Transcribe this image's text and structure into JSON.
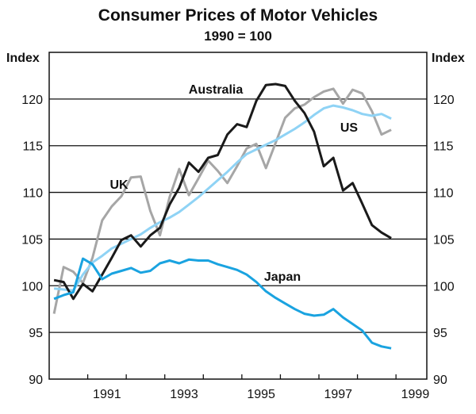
{
  "chart_data": {
    "type": "line",
    "title": "Consumer Prices of Motor Vehicles",
    "subtitle": "1990 = 100",
    "ylabel_left": "Index",
    "ylabel_right": "Index",
    "ylim": [
      90,
      125
    ],
    "yticks": [
      90,
      95,
      100,
      105,
      110,
      115,
      120
    ],
    "xlim": [
      1990,
      1999.8
    ],
    "xtick_labels": [
      "1991",
      "1993",
      "1995",
      "1997",
      "1999"
    ],
    "x_frequency": "quarterly, 1990 Q1 to 1998 Q4",
    "grid": "horizontal",
    "series": [
      {
        "name": "Australia",
        "color": "#1a1a1a",
        "values": [
          100.6,
          100.4,
          98.6,
          100.2,
          99.4,
          101.2,
          103.0,
          104.9,
          105.4,
          104.2,
          105.4,
          106.2,
          108.7,
          110.5,
          113.2,
          112.2,
          113.7,
          114.0,
          116.2,
          117.3,
          117.0,
          119.8,
          121.5,
          121.6,
          121.4,
          119.8,
          118.5,
          116.5,
          112.8,
          113.7,
          110.2,
          111.0,
          108.8,
          106.5,
          105.7,
          105.1
        ]
      },
      {
        "name": "UK",
        "color": "#a6a6a6",
        "values": [
          97.0,
          102.0,
          101.5,
          100.3,
          103.0,
          107.0,
          108.5,
          109.6,
          111.6,
          111.7,
          108.0,
          105.4,
          109.5,
          112.5,
          109.7,
          111.5,
          113.4,
          112.3,
          111.0,
          112.8,
          114.7,
          115.2,
          112.6,
          115.3,
          118.0,
          119.0,
          119.4,
          120.2,
          120.8,
          121.1,
          119.5,
          121.0,
          120.6,
          118.7,
          116.2,
          116.7
        ]
      },
      {
        "name": "US",
        "color": "#8fd3f5",
        "values": [
          99.7,
          99.6,
          99.5,
          101.2,
          102.5,
          103.2,
          104.0,
          104.5,
          105.0,
          105.5,
          106.2,
          106.8,
          107.3,
          107.9,
          108.7,
          109.5,
          110.4,
          111.3,
          112.2,
          113.2,
          114.1,
          114.6,
          115.1,
          115.6,
          116.2,
          116.8,
          117.5,
          118.3,
          119.0,
          119.3,
          119.1,
          118.8,
          118.4,
          118.2,
          118.4,
          117.9
        ]
      },
      {
        "name": "Japan",
        "color": "#1aa3e0",
        "values": [
          98.6,
          99.0,
          99.3,
          102.9,
          102.3,
          100.7,
          101.3,
          101.6,
          101.9,
          101.4,
          101.6,
          102.4,
          102.7,
          102.4,
          102.8,
          102.7,
          102.7,
          102.3,
          102.0,
          101.7,
          101.2,
          100.4,
          99.4,
          98.7,
          98.1,
          97.5,
          97.0,
          96.8,
          96.9,
          97.5,
          96.6,
          95.9,
          95.2,
          93.9,
          93.5,
          93.3
        ]
      }
    ]
  }
}
